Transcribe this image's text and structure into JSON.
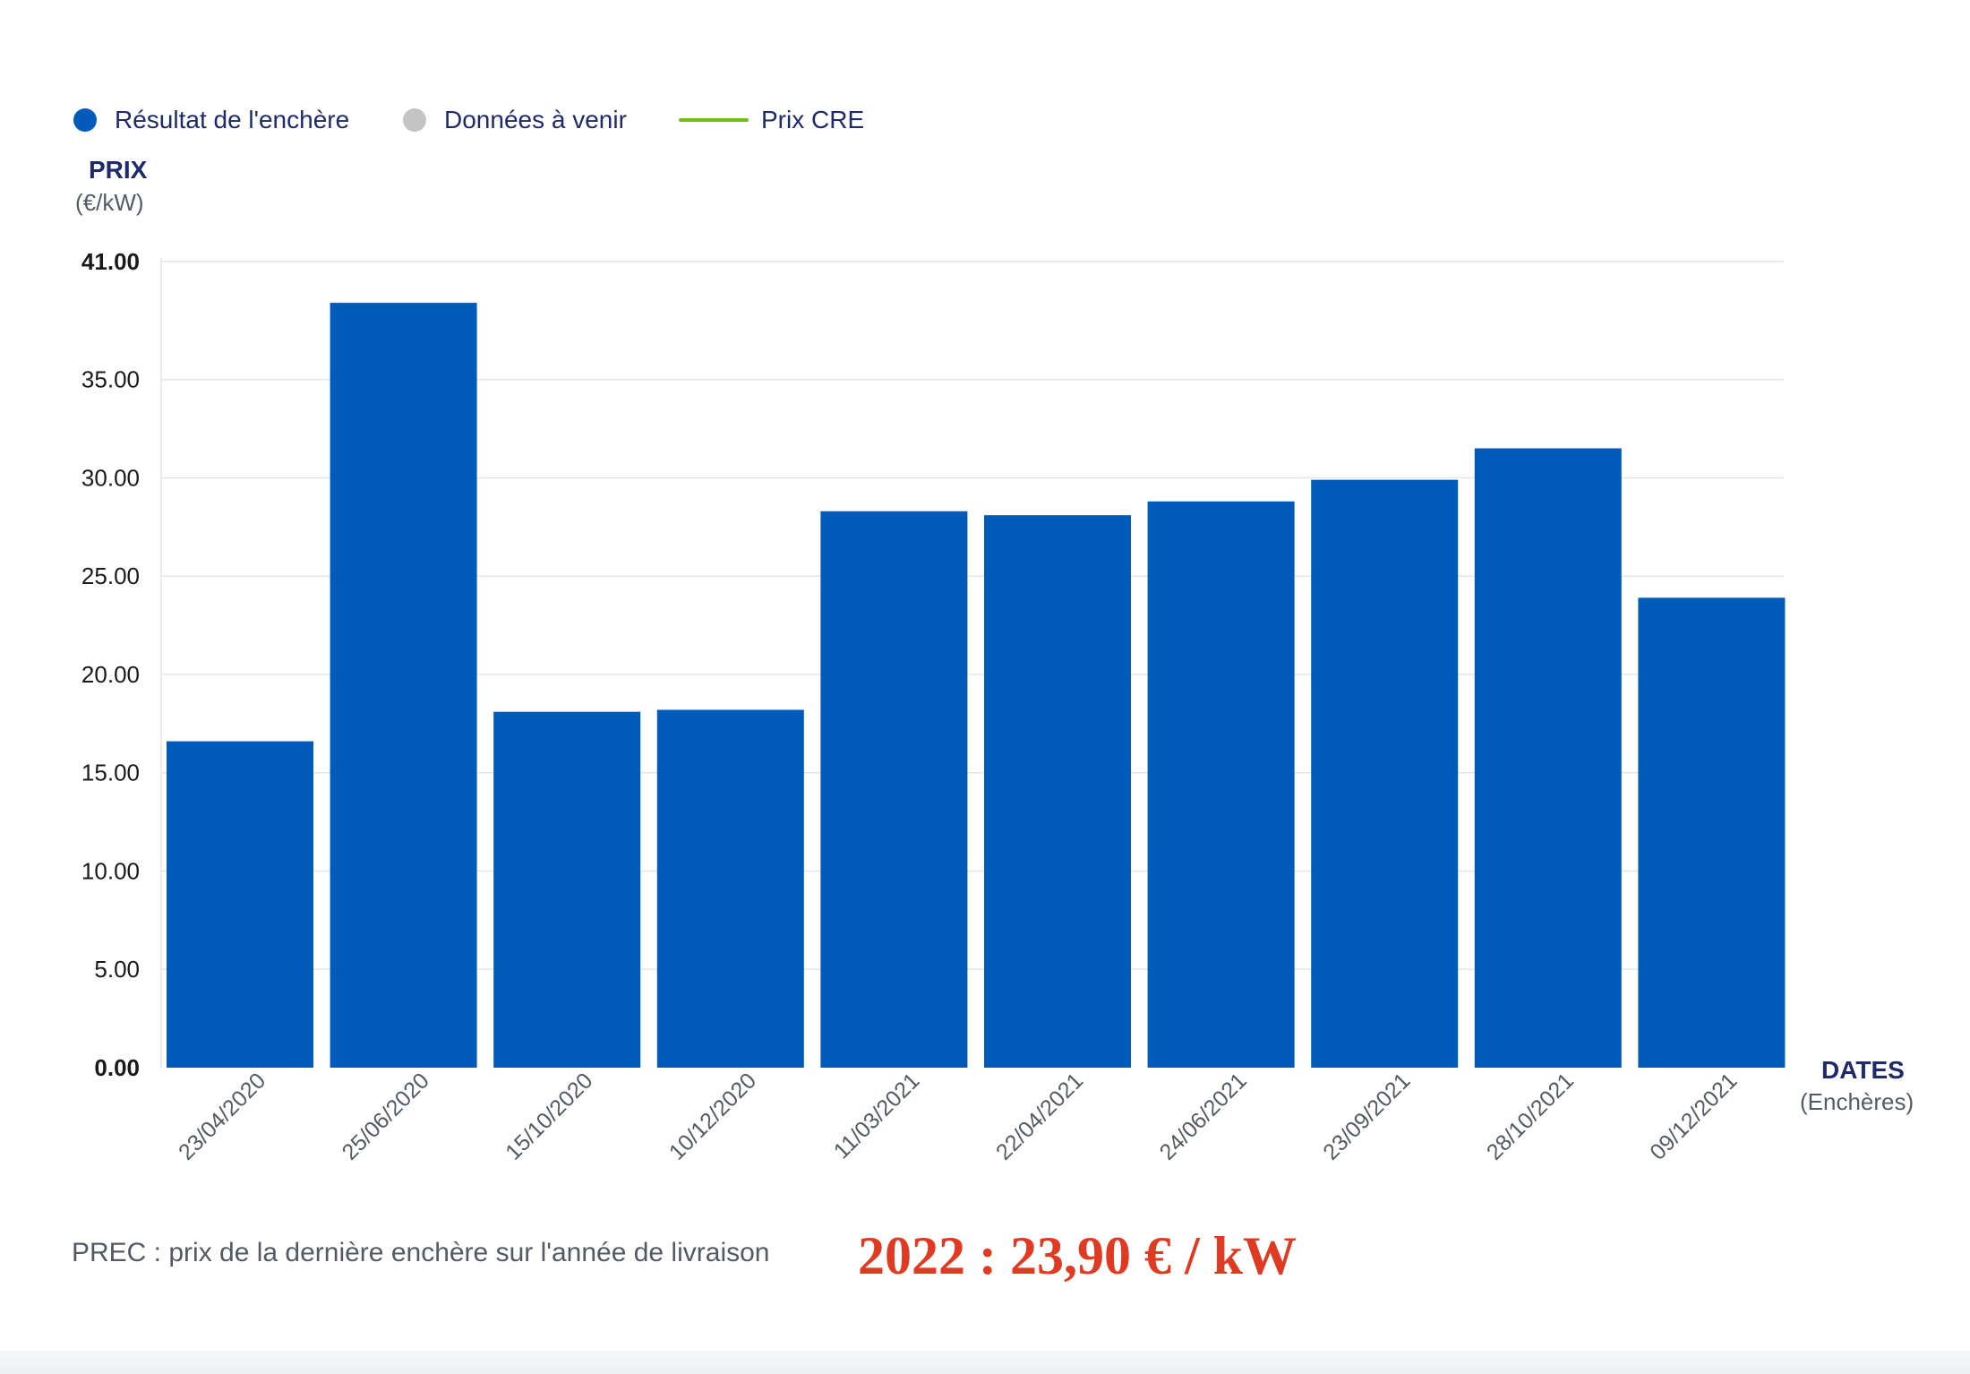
{
  "legend": {
    "items": [
      {
        "label": "Résultat de l'enchère",
        "color": "#005bbb",
        "shape": "dot"
      },
      {
        "label": "Données à venir",
        "color": "#c4c4c4",
        "shape": "dot"
      },
      {
        "label": "Prix CRE",
        "color": "#6cbf1f",
        "shape": "line"
      }
    ]
  },
  "y_axis": {
    "title": "PRIX",
    "unit": "(€/kW)"
  },
  "x_axis": {
    "title": "DATES",
    "unit": "(Enchères)"
  },
  "chart_data": {
    "type": "bar",
    "categories": [
      "23/04/2020",
      "25/06/2020",
      "15/10/2020",
      "10/12/2020",
      "11/03/2021",
      "22/04/2021",
      "24/06/2021",
      "23/09/2021",
      "28/10/2021",
      "09/12/2021"
    ],
    "series": [
      {
        "name": "Résultat de l'enchère",
        "color": "#005bbb",
        "values": [
          16.6,
          38.9,
          18.1,
          18.2,
          28.3,
          28.1,
          28.8,
          29.9,
          31.5,
          23.9
        ]
      }
    ],
    "yticks": [
      "0.00",
      "5.00",
      "10.00",
      "15.00",
      "20.00",
      "25.00",
      "30.00",
      "35.00",
      "41.00"
    ],
    "ytick_values": [
      0,
      5,
      10,
      15,
      20,
      25,
      30,
      35,
      41
    ],
    "ylim": [
      0,
      41
    ],
    "xlabel": "DATES",
    "ylabel": "PRIX",
    "grid": true,
    "legend_position": "top-left"
  },
  "footer": {
    "note": "PREC : prix de la dernière enchère sur l'année de livraison",
    "highlight": "2022 : 23,90 € / kW"
  }
}
